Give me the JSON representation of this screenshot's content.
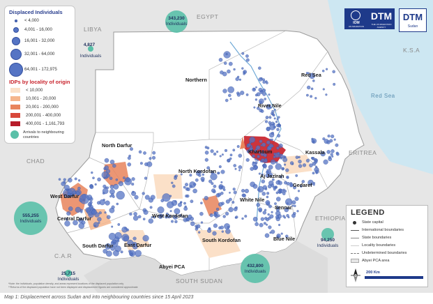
{
  "map": {
    "regions": {
      "egypt": "EGYPT",
      "libya": "LIBYA",
      "chad": "CHAD",
      "car": "C.A.R",
      "south_sudan": "SOUTH SUDAN",
      "ethiopia": "ETHIOPIA",
      "eritrea": "ERITREA",
      "ksa": "K.S.A",
      "red_sea_water": "Red Sea"
    },
    "states": {
      "northern": "Northern",
      "red_sea": "Red Sea",
      "river_nile": "River Nile",
      "north_darfur": "North Darfur",
      "khartoum": "Khartoum",
      "kassala": "Kassala",
      "north_kordofan": "North Kordofan",
      "aj_jazirah": "Aj Jazirah",
      "gedaref": "Gedaref",
      "west_darfur": "West Darfur",
      "white_nile": "White Nile",
      "central_darfur": "Central Darfur",
      "west_kordofan": "West Kordofan",
      "sennar": "Sennar",
      "south_darfur": "South Darfur",
      "east_darfur": "East Darfur",
      "south_kordofan": "South Kordofan",
      "blue_nile": "Blue Nile",
      "abyei": "Abyei PCA"
    },
    "arrivals": [
      {
        "id": "egypt",
        "value": "343,230",
        "label": "Individuals"
      },
      {
        "id": "libya",
        "value": "4,827",
        "label": "Individuals"
      },
      {
        "id": "chad",
        "value": "555,255",
        "label": "Individuals"
      },
      {
        "id": "car",
        "value": "25,715",
        "label": "Individuals"
      },
      {
        "id": "south_sudan",
        "value": "432,800",
        "label": "Individuals"
      },
      {
        "id": "ethiopia",
        "value": "94,250",
        "label": "Individuals"
      }
    ],
    "footnote1": "*Note: the individuals, population density, and areas represent locations of the displaced population only",
    "footnote2": "**Returns of the displaced population have not been displayed and displacement figures are considered approximate"
  },
  "legend_left": {
    "displaced_title": "Displaced Individuals",
    "displaced_classes": [
      "< 4,000",
      "4,001 - 16,000",
      "16,001 - 32,000",
      "32,001 - 64,000",
      "64,001 - 172,975"
    ],
    "idp_title": "IDPs by locality of origin",
    "idp_classes": [
      "< 10,000",
      "10,001 - 20,000",
      "20,001 - 200,000",
      "200,001 - 400,000",
      "400,001 - 1,161,793"
    ],
    "idp_colors": [
      "#fbe0c8",
      "#f5b58c",
      "#e8845c",
      "#d8483a",
      "#b71c2a"
    ],
    "arrivals_label": "Arrivals to neighbouring countries"
  },
  "legend_right": {
    "title": "LEGEND",
    "items": [
      "State capital",
      "International boundaries",
      "State boundaries",
      "Locality boundaries",
      "Undetermined boundaries",
      "Abyei PCA area"
    ],
    "scale": "200 Km"
  },
  "logos": {
    "iom_text": "IOM",
    "iom_sub": "UN MIGRATION",
    "dtm": "DTM",
    "dtm_sub": "THE UN MIGRATION AGENCY",
    "dtm2": "DTM",
    "dtm2_sub": "Sudan"
  },
  "caption": "Map 1: Displacement across Sudan and into neighbouring countries since 15 April 2023",
  "colors": {
    "point": "#5574c4",
    "point_stroke": "#34509f",
    "arrival": "#5ac0a8",
    "water": "#cde7f2",
    "sudan_land": "#ffffff",
    "neighbour_land": "#e6e6e6"
  }
}
